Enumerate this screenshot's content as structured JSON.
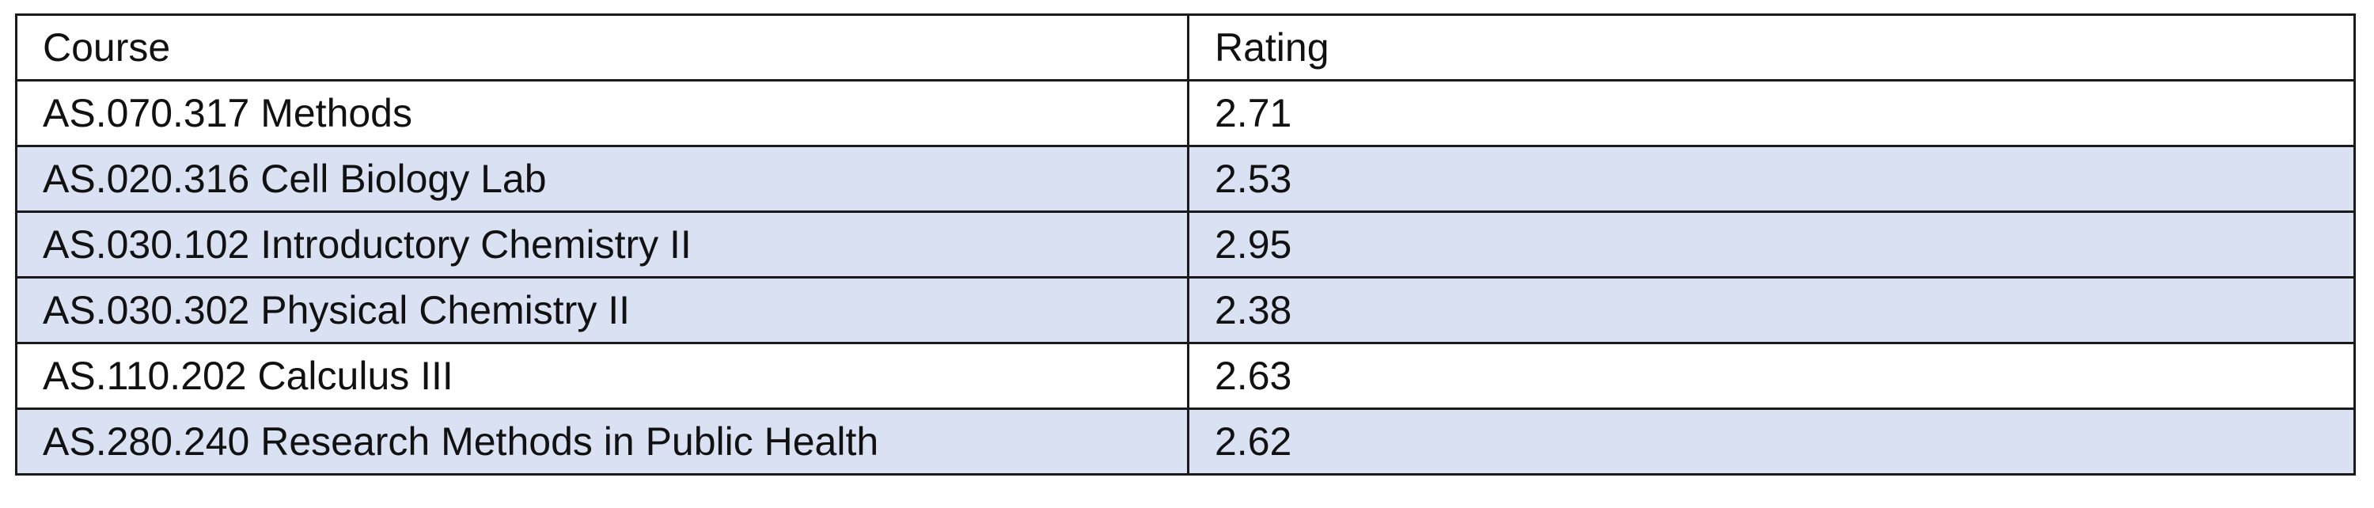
{
  "table": {
    "header": [
      "Course",
      "Rating"
    ],
    "rows": [
      [
        "AS.070.317 Methods",
        2.71
      ],
      [
        "AS.020.316 Cell Biology Lab",
        2.53
      ],
      [
        "AS.030.102 Introductory Chemistry II",
        2.95
      ],
      [
        "AS.030.302 Physical Chemistry II",
        2.38
      ],
      [
        "AS.110.202 Calculus III",
        2.63
      ],
      [
        "AS.280.240 Research Methods in Public Health",
        2.62
      ]
    ]
  }
}
